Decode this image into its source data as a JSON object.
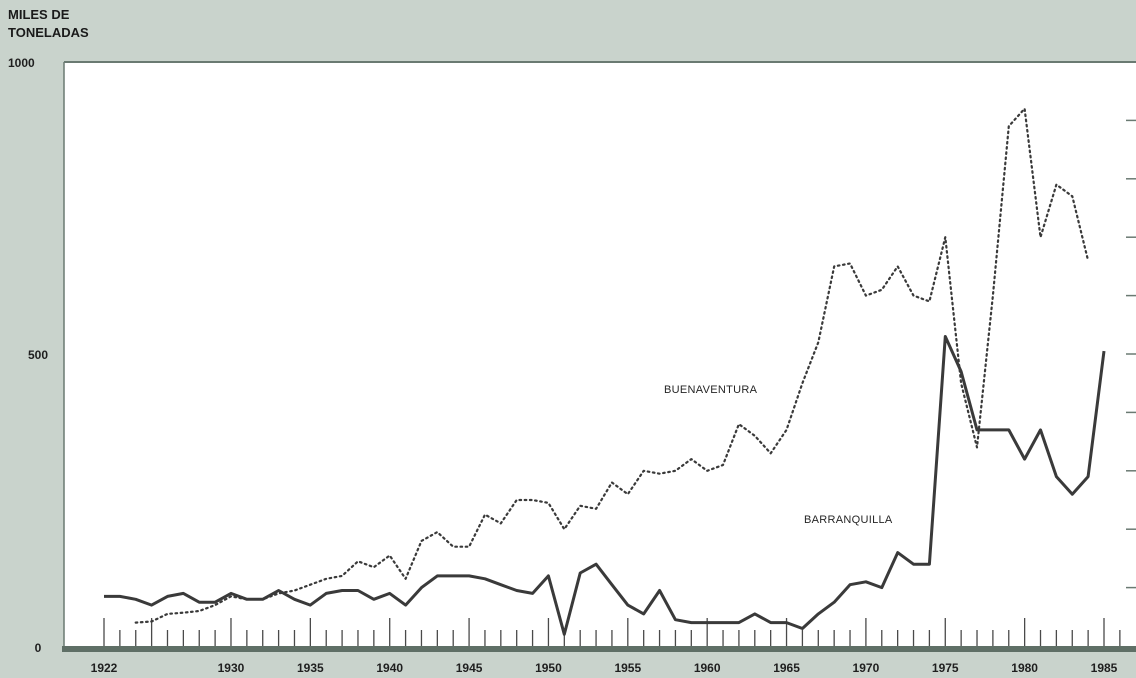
{
  "chart_data": {
    "type": "line",
    "ylabel": [
      "MILES DE",
      "TONELADAS"
    ],
    "ylim": [
      0,
      1000
    ],
    "xlim": [
      1922,
      1986
    ],
    "ytick_labels": [
      {
        "value": 0,
        "label": "0"
      },
      {
        "value": 500,
        "label": "500"
      },
      {
        "value": 1000,
        "label": "1000"
      }
    ],
    "xtick_labels": [
      "1922",
      "1930",
      "1935",
      "1940",
      "1945",
      "1950",
      "1955",
      "1960",
      "1965",
      "1970",
      "1975",
      "1980",
      "1985"
    ],
    "grid": false,
    "colors": {
      "background": "#c9d3cc",
      "plot": "#ffffff",
      "ink": "#3a3a3a",
      "axis_band": "#5f6f66"
    },
    "series": [
      {
        "name": "BUENAVENTURA",
        "style": "dotted",
        "points": [
          [
            1924,
            40
          ],
          [
            1925,
            42
          ],
          [
            1926,
            55
          ],
          [
            1927,
            57
          ],
          [
            1928,
            60
          ],
          [
            1929,
            70
          ],
          [
            1930,
            85
          ],
          [
            1931,
            80
          ],
          [
            1932,
            80
          ],
          [
            1933,
            90
          ],
          [
            1934,
            95
          ],
          [
            1935,
            105
          ],
          [
            1936,
            115
          ],
          [
            1937,
            120
          ],
          [
            1938,
            145
          ],
          [
            1939,
            135
          ],
          [
            1940,
            155
          ],
          [
            1941,
            115
          ],
          [
            1942,
            180
          ],
          [
            1943,
            195
          ],
          [
            1944,
            170
          ],
          [
            1945,
            170
          ],
          [
            1946,
            225
          ],
          [
            1947,
            210
          ],
          [
            1948,
            250
          ],
          [
            1949,
            250
          ],
          [
            1950,
            245
          ],
          [
            1951,
            200
          ],
          [
            1952,
            240
          ],
          [
            1953,
            235
          ],
          [
            1954,
            280
          ],
          [
            1955,
            260
          ],
          [
            1956,
            300
          ],
          [
            1957,
            295
          ],
          [
            1958,
            300
          ],
          [
            1959,
            320
          ],
          [
            1960,
            300
          ],
          [
            1961,
            310
          ],
          [
            1962,
            380
          ],
          [
            1963,
            360
          ],
          [
            1964,
            330
          ],
          [
            1965,
            370
          ],
          [
            1966,
            450
          ],
          [
            1967,
            520
          ],
          [
            1968,
            650
          ],
          [
            1969,
            655
          ],
          [
            1970,
            600
          ],
          [
            1971,
            610
          ],
          [
            1972,
            650
          ],
          [
            1973,
            600
          ],
          [
            1974,
            590
          ],
          [
            1975,
            700
          ],
          [
            1976,
            450
          ],
          [
            1977,
            340
          ],
          [
            1978,
            600
          ],
          [
            1979,
            890
          ],
          [
            1980,
            920
          ],
          [
            1981,
            700
          ],
          [
            1982,
            790
          ],
          [
            1983,
            770
          ],
          [
            1984,
            660
          ]
        ]
      },
      {
        "name": "BARRANQUILLA",
        "style": "solid",
        "points": [
          [
            1922,
            85
          ],
          [
            1923,
            85
          ],
          [
            1924,
            80
          ],
          [
            1925,
            70
          ],
          [
            1926,
            85
          ],
          [
            1927,
            90
          ],
          [
            1928,
            75
          ],
          [
            1929,
            75
          ],
          [
            1930,
            90
          ],
          [
            1931,
            80
          ],
          [
            1932,
            80
          ],
          [
            1933,
            95
          ],
          [
            1934,
            80
          ],
          [
            1935,
            70
          ],
          [
            1936,
            90
          ],
          [
            1937,
            95
          ],
          [
            1938,
            95
          ],
          [
            1939,
            80
          ],
          [
            1940,
            90
          ],
          [
            1941,
            70
          ],
          [
            1942,
            100
          ],
          [
            1943,
            120
          ],
          [
            1944,
            120
          ],
          [
            1945,
            120
          ],
          [
            1946,
            115
          ],
          [
            1947,
            105
          ],
          [
            1948,
            95
          ],
          [
            1949,
            90
          ],
          [
            1950,
            120
          ],
          [
            1951,
            20
          ],
          [
            1952,
            125
          ],
          [
            1953,
            140
          ],
          [
            1954,
            105
          ],
          [
            1955,
            70
          ],
          [
            1956,
            55
          ],
          [
            1957,
            95
          ],
          [
            1958,
            45
          ],
          [
            1959,
            40
          ],
          [
            1960,
            40
          ],
          [
            1961,
            40
          ],
          [
            1962,
            40
          ],
          [
            1963,
            55
          ],
          [
            1964,
            40
          ],
          [
            1965,
            40
          ],
          [
            1966,
            30
          ],
          [
            1967,
            55
          ],
          [
            1968,
            75
          ],
          [
            1969,
            105
          ],
          [
            1970,
            110
          ],
          [
            1971,
            100
          ],
          [
            1972,
            160
          ],
          [
            1973,
            140
          ],
          [
            1974,
            140
          ],
          [
            1975,
            530
          ],
          [
            1976,
            470
          ],
          [
            1977,
            370
          ],
          [
            1978,
            370
          ],
          [
            1979,
            370
          ],
          [
            1980,
            320
          ],
          [
            1981,
            370
          ],
          [
            1982,
            290
          ],
          [
            1983,
            260
          ],
          [
            1984,
            290
          ],
          [
            1985,
            505
          ]
        ]
      }
    ]
  }
}
